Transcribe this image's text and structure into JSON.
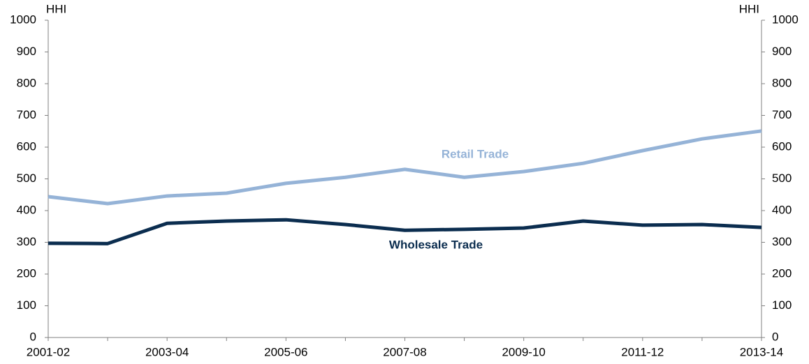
{
  "chart_data": {
    "type": "line",
    "categories": [
      "2001-02",
      null,
      "2003-04",
      null,
      "2005-06",
      null,
      "2007-08",
      null,
      "2009-10",
      null,
      "2011-12",
      null,
      "2013-14"
    ],
    "series": [
      {
        "name": "Retail Trade",
        "color": "#95b3d7",
        "values": [
          444,
          422,
          446,
          455,
          486,
          505,
          530,
          505,
          523,
          549,
          589,
          626,
          651
        ]
      },
      {
        "name": "Wholesale Trade",
        "color": "#0b2d4f",
        "values": [
          297,
          296,
          360,
          367,
          371,
          356,
          338,
          341,
          345,
          367,
          354,
          356,
          347
        ]
      }
    ],
    "ylabel": "HHI",
    "y2label": "HHI",
    "ylim": [
      0,
      1000
    ],
    "yticks": [
      0,
      100,
      200,
      300,
      400,
      500,
      600,
      700,
      800,
      900,
      1000
    ],
    "y2lim": [
      0,
      1000
    ],
    "y2ticks": [
      0,
      100,
      200,
      300,
      400,
      500,
      600,
      700,
      800,
      900,
      1000
    ]
  }
}
